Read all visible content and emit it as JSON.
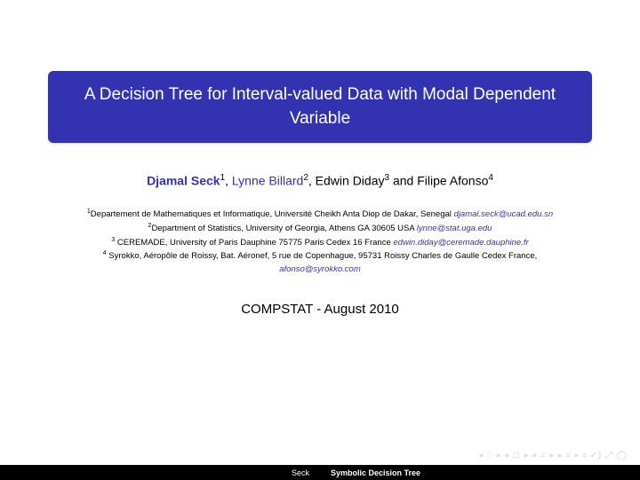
{
  "colors": {
    "title_bg": "#3333b2",
    "title_text": "#ffffff",
    "link": "#3333b2",
    "body": "#000000",
    "footer_bg": "#000000",
    "footer_text": "#ffffff",
    "nav_icon": "#c8c8d8"
  },
  "title": "A Decision Tree for Interval-valued Data with Modal Dependent Variable",
  "authors": {
    "a1_name": "Djamal Seck",
    "a1_sup": "1",
    "sep1": ", ",
    "a2_name": "Lynne Billard",
    "a2_sup": "2",
    "sep2": ", ",
    "a3_name": "Edwin Diday",
    "a3_sup": "3",
    "sep3": " and ",
    "a4_name": "Filipe Afonso",
    "a4_sup": "4"
  },
  "affiliations": {
    "l1_sup": "1",
    "l1_text": "Departement de Mathematiques et Informatique, Université Cheikh Anta Diop de Dakar, Senegal ",
    "l1_email": "djamal.seck@ucad.edu.sn",
    "l2_sup": "2",
    "l2_text": "Department of Statistics, University of Georgia, Athens GA 30605 USA ",
    "l2_email": "lynne@stat.uga.edu",
    "l3_sup": "3",
    "l3_text": " CEREMADE, University of Paris Dauphine  75775 Paris Cedex 16 France ",
    "l3_email": "edwin.diday@ceremade.dauphine.fr",
    "l4_sup": "4",
    "l4_text": " Syrokko, Aéropôle de Roissy, Bat. Aéronef, 5 rue de Copenhague, 95731 Roissy Charles de Gaulle Cedex France,",
    "l4_email": "afonso@syrokko.com"
  },
  "venue": "COMPSTAT - August 2010",
  "footer": {
    "left": "Seck",
    "right": "Symbolic Decision Tree"
  },
  "nav": {
    "g1": "◂ □ ▸",
    "g2": "◂ ⊡ ▸",
    "g3": "◂ ≡ ▸",
    "g4": "◂ ≡ ▸",
    "g5": "≡",
    "g6": "✓) ⤢ ◯"
  }
}
